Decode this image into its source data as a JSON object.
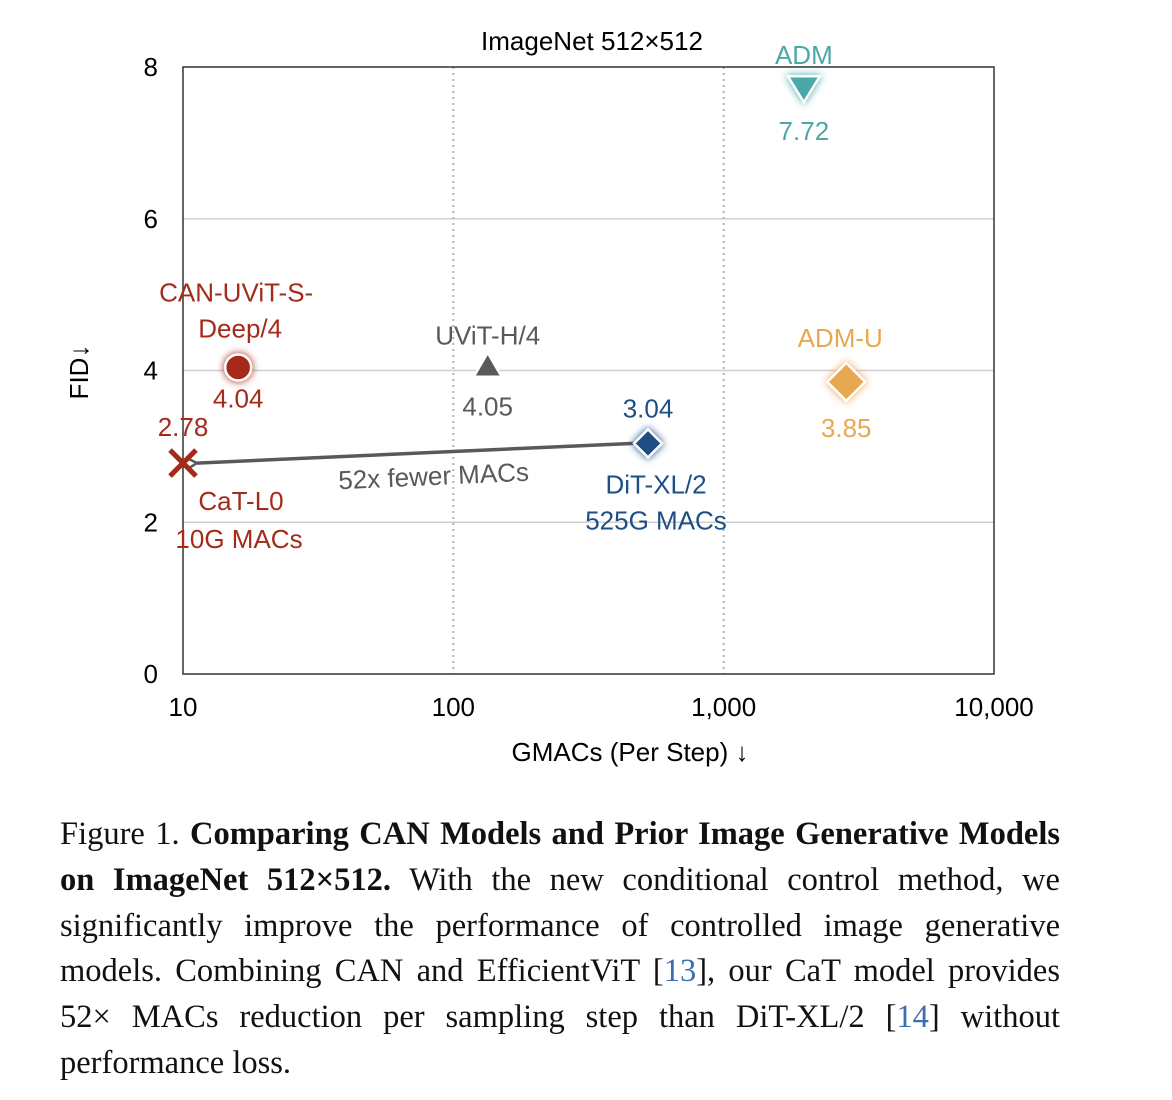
{
  "chart_data": {
    "type": "scatter",
    "title": "ImageNet 512×512",
    "xlabel": "GMACs (Per Step) ↓",
    "ylabel": "FID↓",
    "xscale": "log",
    "xlim": [
      10,
      10000
    ],
    "ylim": [
      0,
      8
    ],
    "xticks": [
      10,
      100,
      1000,
      10000
    ],
    "xtick_labels": [
      "10",
      "100",
      "1,000",
      "10,000"
    ],
    "yticks": [
      0,
      2,
      4,
      6,
      8
    ],
    "ytick_labels": [
      "0",
      "2",
      "4",
      "6",
      "8"
    ],
    "grid": true,
    "points": [
      {
        "name": "CAN-UViT-S-Deep/4",
        "name_lines": [
          "CAN-UViT-S-",
          "Deep/4"
        ],
        "x": 16,
        "y": 4.04,
        "label": "4.04",
        "marker": "circle",
        "color": "#a52a1a"
      },
      {
        "name": "CaT-L0",
        "name_lines": [
          "CaT-L0",
          "10G MACs"
        ],
        "x": 10,
        "y": 2.78,
        "label": "2.78",
        "marker": "x",
        "color": "#a52a1a"
      },
      {
        "name": "UViT-H/4",
        "name_lines": [
          "UViT-H/4"
        ],
        "x": 134,
        "y": 4.05,
        "label": "4.05",
        "marker": "triangle-up",
        "color": "#595959"
      },
      {
        "name": "DiT-XL/2",
        "name_lines": [
          "DiT-XL/2",
          "525G MACs"
        ],
        "x": 525,
        "y": 3.04,
        "label": "3.04",
        "marker": "diamond",
        "color": "#1f4e85"
      },
      {
        "name": "ADM",
        "name_lines": [
          "ADM"
        ],
        "x": 1980,
        "y": 7.72,
        "label": "7.72",
        "marker": "triangle-down",
        "color": "#4aa8a8"
      },
      {
        "name": "ADM-U",
        "name_lines": [
          "ADM-U"
        ],
        "x": 2840,
        "y": 3.85,
        "label": "3.85",
        "marker": "diamond",
        "color": "#e8a852"
      }
    ],
    "annotation": {
      "text": "52x fewer MACs",
      "from": "DiT-XL/2",
      "to": "CaT-L0",
      "color": "#595959"
    }
  },
  "caption": {
    "figure_label": "Figure 1.",
    "bold_title": "Comparing CAN Models and Prior Image Generative Models on ImageNet 512×512.",
    "text_1": "With the new conditional control method, we significantly improve the performance of controlled image generative models. Combining CAN and EfficientViT [",
    "ref_1": "13",
    "text_2": "], our CaT model provides 52× MACs reduction per sampling step than DiT-XL/2 [",
    "ref_2": "14",
    "text_3": "] without performance loss."
  }
}
